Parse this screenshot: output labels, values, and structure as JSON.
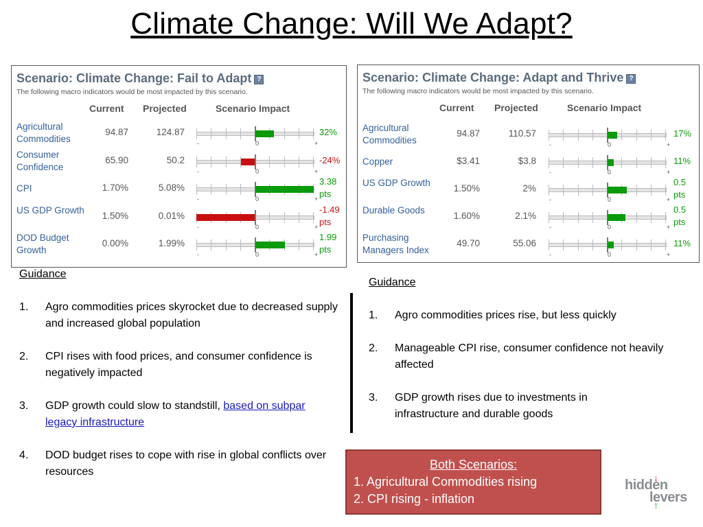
{
  "title": "Climate Change: Will We Adapt?",
  "colors": {
    "positive": "#0a9a0a",
    "negative": "#c81010",
    "banner": "#c0504d",
    "link": "#1a1ab8"
  },
  "gauge_labels": {
    "minus": "-",
    "zero": "0",
    "plus": "+"
  },
  "left_panel": {
    "title": "Scenario: Climate Change: Fail to Adapt",
    "help_icon": "?",
    "subtitle": "The following macro indicators would be most impacted by this scenario.",
    "headers": {
      "current": "Current",
      "projected": "Projected",
      "impact": "Scenario Impact"
    },
    "rows": [
      {
        "name": "Agricultural Commodities",
        "current": "94.87",
        "projected": "124.87",
        "impact_l1": "32%",
        "impact_l2": "",
        "impact_fraction": 0.32
      },
      {
        "name": "Consumer Confidence",
        "current": "65.90",
        "projected": "50.2",
        "impact_l1": "-24%",
        "impact_l2": "",
        "impact_fraction": -0.24
      },
      {
        "name": "CPI",
        "current": "1.70%",
        "projected": "5.08%",
        "impact_l1": "3.38",
        "impact_l2": "pts",
        "impact_fraction": 1.0
      },
      {
        "name": "US GDP Growth",
        "current": "1.50%",
        "projected": "0.01%",
        "impact_l1": "-1.49",
        "impact_l2": "pts",
        "impact_fraction": -1.0
      },
      {
        "name": "DOD Budget Growth",
        "current": "0.00%",
        "projected": "1.99%",
        "impact_l1": "1.99",
        "impact_l2": "pts",
        "impact_fraction": 0.5
      }
    ]
  },
  "right_panel": {
    "title": "Scenario: Climate Change: Adapt and Thrive",
    "help_icon": "?",
    "subtitle": "The following macro indicators would be most impacted by this scenario.",
    "headers": {
      "current": "Current",
      "projected": "Projected",
      "impact": "Scenario Impact"
    },
    "rows": [
      {
        "name": "Agricultural Commodities",
        "current": "94.87",
        "projected": "110.57",
        "impact_l1": "17%",
        "impact_l2": "",
        "impact_fraction": 0.17
      },
      {
        "name": "Copper",
        "current": "$3.41",
        "projected": "$3.8",
        "impact_l1": "11%",
        "impact_l2": "",
        "impact_fraction": 0.11
      },
      {
        "name": "US GDP Growth",
        "current": "1.50%",
        "projected": "2%",
        "impact_l1": "0.5",
        "impact_l2": "pts",
        "impact_fraction": 0.33
      },
      {
        "name": "Durable Goods",
        "current": "1.60%",
        "projected": "2.1%",
        "impact_l1": "0.5",
        "impact_l2": "pts",
        "impact_fraction": 0.31
      },
      {
        "name": "Purchasing Managers Index",
        "current": "49.70",
        "projected": "55.06",
        "impact_l1": "11%",
        "impact_l2": "",
        "impact_fraction": 0.11
      }
    ]
  },
  "guidance_left": {
    "heading": "Guidance",
    "items": [
      {
        "num": "1.",
        "text": "Agro commodities prices skyrocket due to decreased supply and increased global population"
      },
      {
        "num": "2.",
        "text": "CPI rises with food prices, and consumer confidence is negatively impacted"
      },
      {
        "num": "3.",
        "text": "GDP growth could slow to standstill, ",
        "link": "based on subpar legacy infrastructure"
      },
      {
        "num": "4.",
        "text": "DOD budget rises to cope with rise in global conflicts over resources"
      }
    ]
  },
  "guidance_right": {
    "heading": "Guidance",
    "items": [
      {
        "num": "1.",
        "text": "Agro commodities prices rise, but less quickly"
      },
      {
        "num": "2.",
        "text": "Manageable CPI rise, consumer confidence not heavily affected"
      },
      {
        "num": "3.",
        "text": "GDP growth rises due to investments in infrastructure and durable goods"
      }
    ]
  },
  "both_scenarios": {
    "title": "Both Scenarios:",
    "items": [
      "1. Agricultural Commodities rising",
      "2. CPI rising - inflation"
    ]
  },
  "logo": {
    "word1": "hidden",
    "word2": "levers",
    "arrow_down": "↓",
    "arrow_up": "↑"
  }
}
